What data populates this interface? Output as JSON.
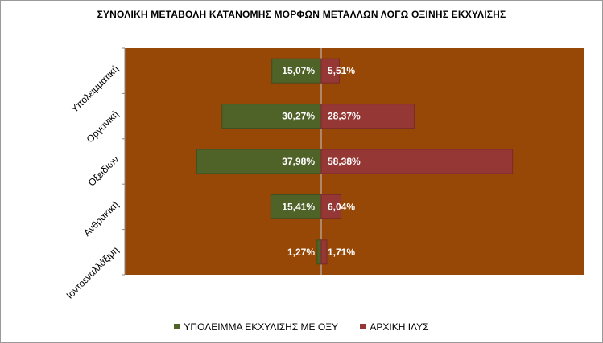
{
  "chart_data": {
    "type": "bar",
    "orientation": "horizontal-diverging",
    "title": "ΣΥΝΟΛΙΚΗ ΜΕΤΑΒΟΛΗ ΚΑΤΑΝΟΜΗΣ  ΜΟΡΦΩΝ ΜΕΤΑΛΛΩΝ ΛΟΓΩ ΟΞΙΝΗΣ ΕΚΧΥΛΙΣΗΣ",
    "categories": [
      "Υπολειμματική",
      "Οργανική",
      "Οξειδίων",
      "Ανθρακική",
      "Ιοντοεναλλάξιμη"
    ],
    "series": [
      {
        "name": "ΥΠΟΛΕΙΜΜΑ ΕΚΧΥΛΙΣΗΣ ΜΕ ΟΞΥ",
        "side": "left",
        "color": "#4f6228",
        "values": [
          15.07,
          30.27,
          37.98,
          15.41,
          1.27
        ],
        "labels": [
          "15,07%",
          "30,27%",
          "37,98%",
          "15,41%",
          "1,27%"
        ]
      },
      {
        "name": "ΑΡΧΙΚΗ ΙΛΥΣ",
        "side": "right",
        "color": "#953735",
        "values": [
          5.51,
          28.37,
          58.38,
          6.04,
          1.71
        ],
        "labels": [
          "5,51%",
          "28,37%",
          "58,38%",
          "6,04%",
          "1,71%"
        ]
      }
    ],
    "plot_background": "#984806",
    "grid": false,
    "legend_position": "bottom"
  }
}
